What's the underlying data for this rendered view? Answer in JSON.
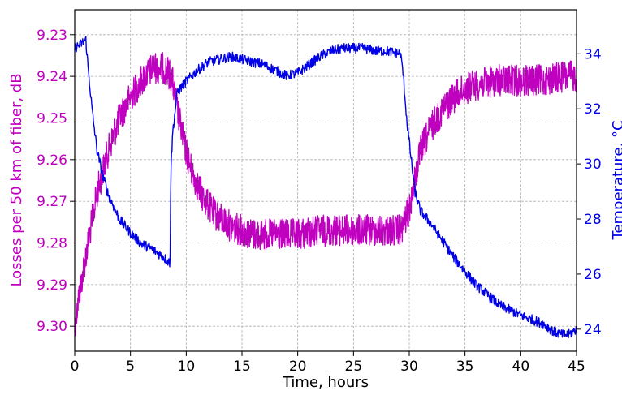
{
  "chart_data": {
    "type": "line",
    "xlabel": "Time, hours",
    "ylabel_left": "Losses per 50 km of fiber, dB",
    "ylabel_right": "Temperature, °C",
    "xlim": [
      0,
      45
    ],
    "ylim_left": [
      9.306,
      9.224
    ],
    "ylim_right": [
      23.2,
      35.6
    ],
    "left_axis_inverted": true,
    "grid": true,
    "x_ticks": [
      0,
      5,
      10,
      15,
      20,
      25,
      30,
      35,
      40,
      45
    ],
    "y_left_ticks": [
      "9.23",
      "9.24",
      "9.25",
      "9.26",
      "9.27",
      "9.28",
      "9.29",
      "9.30"
    ],
    "y_right_ticks": [
      "24",
      "26",
      "28",
      "30",
      "32",
      "34"
    ],
    "series": [
      {
        "axis": "left",
        "color": "#bf00bf",
        "noise_amplitude": 0.0038,
        "x": [
          0,
          0.3,
          1,
          2,
          3,
          4,
          5,
          6,
          7,
          8,
          8.7,
          9.2,
          9.8,
          10.5,
          11.5,
          12.5,
          14,
          16,
          18,
          20,
          22,
          24,
          26,
          28,
          29.3,
          30,
          30.5,
          31,
          32,
          33,
          34,
          35,
          36,
          38,
          40,
          42,
          44,
          45
        ],
        "values": [
          9.3,
          9.294,
          9.283,
          9.268,
          9.258,
          9.25,
          9.245,
          9.241,
          9.238,
          9.238,
          9.24,
          9.248,
          9.256,
          9.263,
          9.269,
          9.273,
          9.276,
          9.278,
          9.278,
          9.278,
          9.277,
          9.277,
          9.277,
          9.277,
          9.277,
          9.272,
          9.265,
          9.258,
          9.252,
          9.248,
          9.245,
          9.243,
          9.242,
          9.241,
          9.241,
          9.241,
          9.24,
          9.24
        ]
      },
      {
        "axis": "right",
        "color": "#0000e6",
        "noise_amplitude": 0.18,
        "x": [
          0,
          1.0,
          1.2,
          1.6,
          2.0,
          2.5,
          3.0,
          4.0,
          5.0,
          6.0,
          7.0,
          8.0,
          8.55,
          8.62,
          8.8,
          9.2,
          10,
          11,
          12,
          13,
          14,
          15,
          16,
          17,
          18,
          19,
          20,
          21,
          22,
          23,
          24,
          25,
          26,
          27,
          28,
          29.2,
          29.4,
          29.8,
          30.5,
          31,
          32,
          33,
          34,
          35,
          36,
          38,
          40,
          42,
          43,
          43.7,
          44.3,
          45
        ],
        "values": [
          34.2,
          34.5,
          33.5,
          31.8,
          30.5,
          29.6,
          28.9,
          28.0,
          27.5,
          27.1,
          26.9,
          26.6,
          26.4,
          29.8,
          31.2,
          32.6,
          33.0,
          33.4,
          33.7,
          33.8,
          33.9,
          33.8,
          33.7,
          33.6,
          33.4,
          33.2,
          33.3,
          33.6,
          33.9,
          34.1,
          34.2,
          34.2,
          34.2,
          34.1,
          34.1,
          34.0,
          33.5,
          31.5,
          29.0,
          28.3,
          27.8,
          27.2,
          26.6,
          26.1,
          25.6,
          24.9,
          24.5,
          24.2,
          23.9,
          23.8,
          23.8,
          24.0
        ]
      }
    ]
  }
}
